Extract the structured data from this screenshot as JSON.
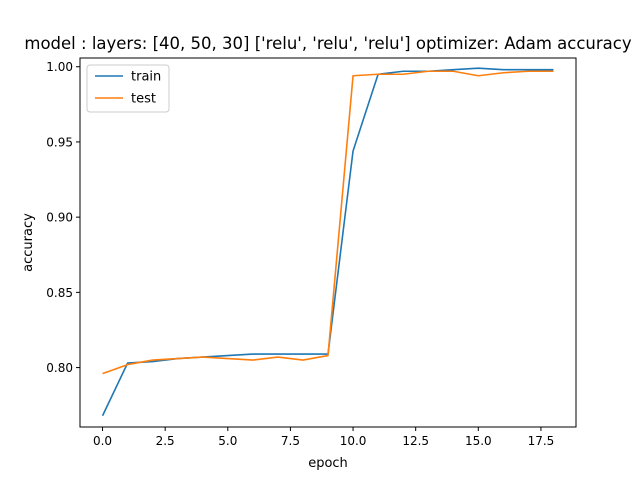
{
  "chart_data": {
    "type": "line",
    "title": "model : layers: [40, 50, 30] ['relu', 'relu', 'relu'] optimizer: Adam accuracy",
    "xlabel": "epoch",
    "ylabel": "accuracy",
    "xlim": [
      -0.9,
      18.9
    ],
    "ylim": [
      0.7605,
      1.0058
    ],
    "grid": false,
    "legend_position": "top-left",
    "x_ticks": [
      0.0,
      2.5,
      5.0,
      7.5,
      10.0,
      12.5,
      15.0,
      17.5
    ],
    "x_tick_labels": [
      "0.0",
      "2.5",
      "5.0",
      "7.5",
      "10.0",
      "12.5",
      "15.0",
      "17.5"
    ],
    "y_ticks": [
      0.8,
      0.85,
      0.9,
      0.95,
      1.0
    ],
    "y_tick_labels": [
      "0.80",
      "0.85",
      "0.90",
      "0.95",
      "1.00"
    ],
    "x": [
      0,
      1,
      2,
      3,
      4,
      5,
      6,
      7,
      8,
      9,
      10,
      11,
      12,
      13,
      14,
      15,
      16,
      17,
      18
    ],
    "series": [
      {
        "name": "train",
        "color": "#1f77b4",
        "values": [
          0.768,
          0.803,
          0.804,
          0.806,
          0.807,
          0.808,
          0.809,
          0.809,
          0.809,
          0.809,
          0.944,
          0.995,
          0.997,
          0.997,
          0.998,
          0.999,
          0.998,
          0.998,
          0.998
        ]
      },
      {
        "name": "test",
        "color": "#ff7f0e",
        "values": [
          0.796,
          0.802,
          0.805,
          0.806,
          0.807,
          0.806,
          0.805,
          0.807,
          0.805,
          0.808,
          0.994,
          0.995,
          0.995,
          0.997,
          0.997,
          0.994,
          0.996,
          0.997,
          0.997
        ]
      }
    ]
  }
}
